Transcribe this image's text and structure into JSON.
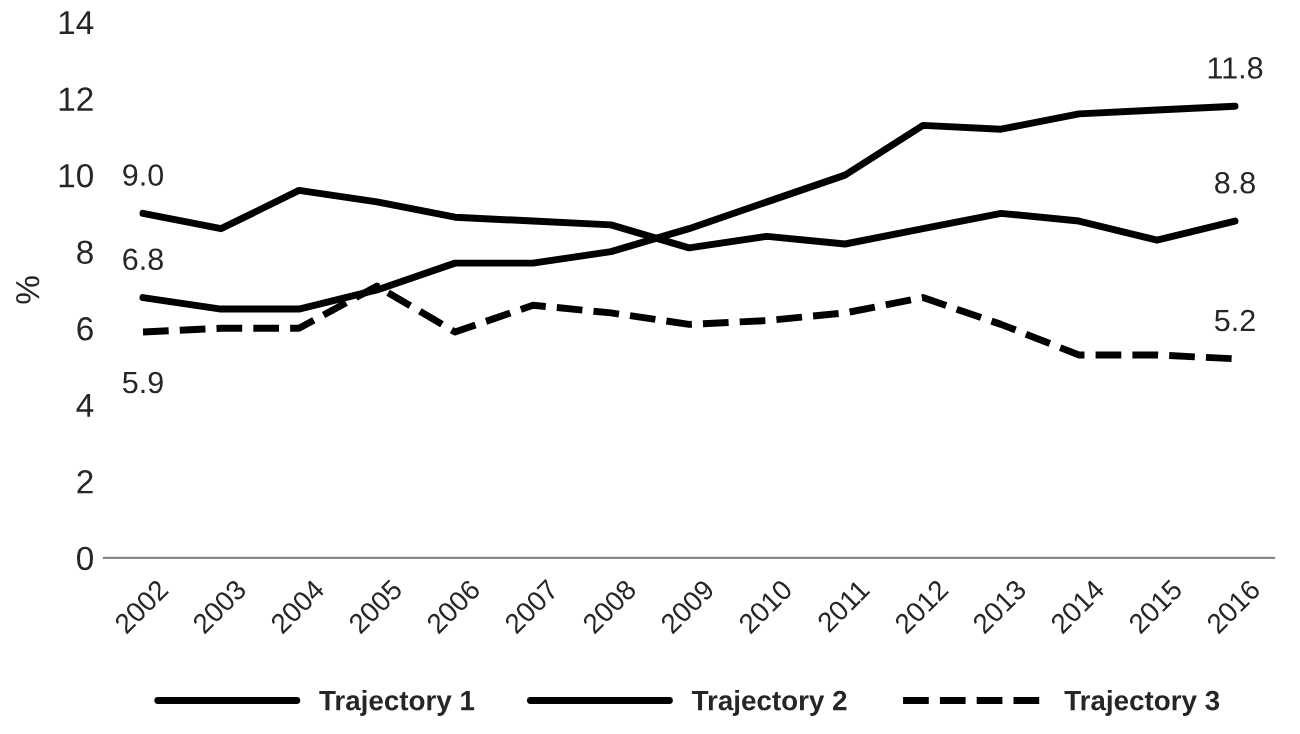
{
  "chart_data": {
    "type": "line",
    "ylabel": "%",
    "categories": [
      "2002",
      "2003",
      "2004",
      "2005",
      "2006",
      "2007",
      "2008",
      "2009",
      "2010",
      "2011",
      "2012",
      "2013",
      "2014",
      "2015",
      "2016"
    ],
    "series": [
      {
        "name": "Trajectory 1",
        "color": "#000000",
        "line_style": "solid",
        "values": [
          6.8,
          6.5,
          6.5,
          7.0,
          7.7,
          7.7,
          8.0,
          8.6,
          9.3,
          10.0,
          11.3,
          11.2,
          11.6,
          11.7,
          11.8
        ]
      },
      {
        "name": "Trajectory 2",
        "color": "#000000",
        "line_style": "solid",
        "values": [
          9.0,
          8.6,
          9.6,
          9.3,
          8.9,
          8.8,
          8.7,
          8.1,
          8.4,
          8.2,
          8.6,
          9.0,
          8.8,
          8.3,
          8.8
        ]
      },
      {
        "name": "Trajectory 3",
        "color": "#000000",
        "line_style": "dashed",
        "values": [
          5.9,
          6.0,
          6.0,
          7.1,
          5.9,
          6.6,
          6.4,
          6.1,
          6.2,
          6.4,
          6.8,
          6.1,
          5.3,
          5.3,
          5.2
        ]
      }
    ],
    "annotations": [
      {
        "text": "9.0",
        "x": "2002",
        "y": 9.0
      },
      {
        "text": "6.8",
        "x": "2002",
        "y": 6.8
      },
      {
        "text": "5.9",
        "x": "2002",
        "y": 5.9
      },
      {
        "text": "11.8",
        "x": "2016",
        "y": 11.8
      },
      {
        "text": "8.8",
        "x": "2016",
        "y": 8.8
      },
      {
        "text": "5.2",
        "x": "2016",
        "y": 5.2
      }
    ],
    "ylim": [
      0,
      14
    ],
    "yticks": [
      0,
      2,
      4,
      6,
      8,
      10,
      12,
      14
    ],
    "grid": false,
    "legend": "bottom",
    "marker": "none"
  }
}
